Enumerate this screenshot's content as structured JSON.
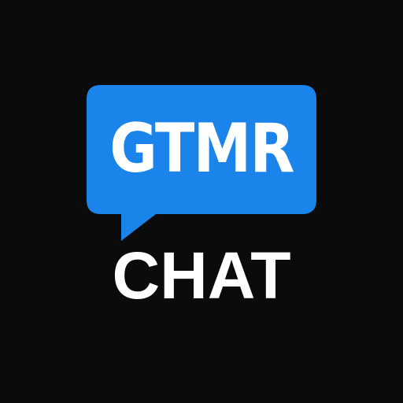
{
  "logo": {
    "bubble_text": "GTMR",
    "subtitle": "CHAT"
  },
  "colors": {
    "background": "#0b0b0c",
    "bubble": "#1a84ea",
    "text": "#ffffff"
  },
  "icon": "chat-bubble-icon"
}
